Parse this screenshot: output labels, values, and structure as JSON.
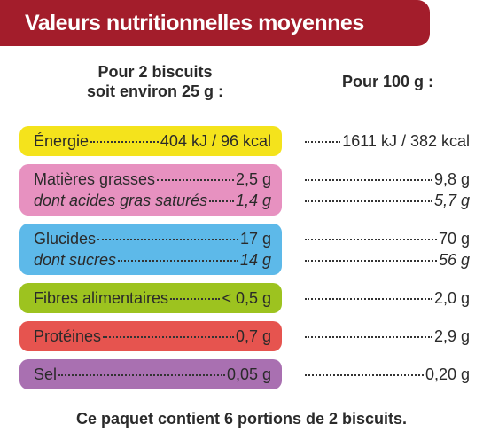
{
  "header": {
    "title": "Valeurs nutritionnelles moyennes"
  },
  "columns": {
    "portion": [
      "Pour 2 biscuits",
      "soit environ 25 g :"
    ],
    "per_100g": "Pour 100 g :"
  },
  "groups": [
    {
      "color": "#f4e31c",
      "lines": [
        {
          "label": "Énergie",
          "portion": "404 kJ / 96 kcal",
          "per_100g": "1611 kJ / 382 kcal"
        }
      ]
    },
    {
      "color": "#e791c0",
      "lines": [
        {
          "label": "Matières grasses",
          "portion": "2,5 g",
          "per_100g": "9,8 g"
        },
        {
          "label": "dont acides gras saturés",
          "portion": "1,4 g",
          "per_100g": "5,7 g"
        }
      ]
    },
    {
      "color": "#5db9e9",
      "lines": [
        {
          "label": "Glucides",
          "portion": "17 g",
          "per_100g": "70 g"
        },
        {
          "label": "dont sucres",
          "portion": "14 g",
          "per_100g": "56 g"
        }
      ]
    },
    {
      "color": "#9dc31f",
      "lines": [
        {
          "label": "Fibres alimentaires",
          "portion": "< 0,5 g",
          "per_100g": "2,0 g"
        }
      ]
    },
    {
      "color": "#e6544f",
      "lines": [
        {
          "label": "Protéines",
          "portion": "0,7 g",
          "per_100g": "2,9 g"
        }
      ]
    },
    {
      "color": "#a970b1",
      "lines": [
        {
          "label": "Sel",
          "portion": "0,05 g",
          "per_100g": "0,20 g"
        }
      ]
    }
  ],
  "footer": "Ce paquet contient 6 portions de 2 biscuits."
}
